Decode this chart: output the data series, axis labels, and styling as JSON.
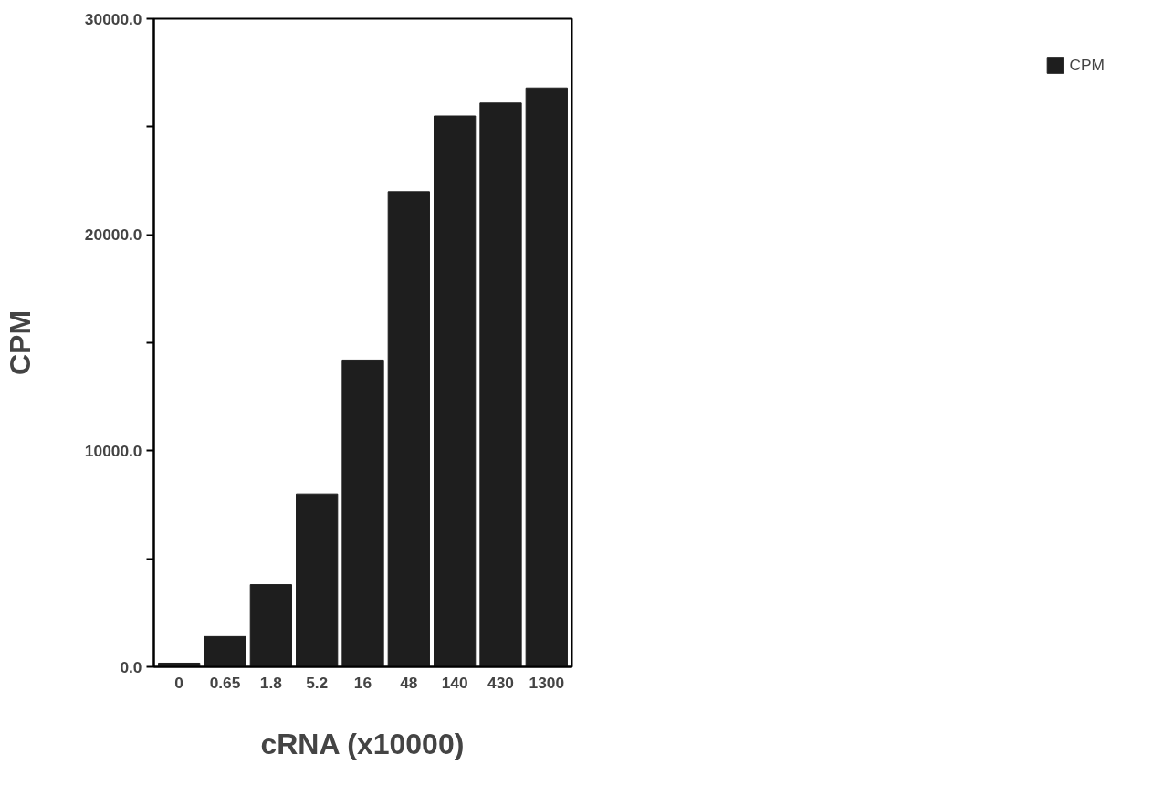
{
  "chart_data": {
    "type": "bar",
    "xlabel": "cRNA (x10000)",
    "ylabel": "CPM",
    "categories": [
      "0",
      "0.65",
      "1.8",
      "5.2",
      "16",
      "48",
      "140",
      "430",
      "1300"
    ],
    "series": [
      {
        "name": "CPM",
        "color": "#1e1e1e",
        "values": [
          170,
          1400,
          3800,
          8000,
          14200,
          22000,
          25500,
          26100,
          26800
        ]
      }
    ],
    "ylim": [
      0,
      30000
    ],
    "yticks": [
      {
        "value": 0,
        "label": "0.0"
      },
      {
        "value": 5000,
        "label": null
      },
      {
        "value": 10000,
        "label": "10000.0"
      },
      {
        "value": 15000,
        "label": null
      },
      {
        "value": 20000,
        "label": "20000.0"
      },
      {
        "value": 25000,
        "label": null
      },
      {
        "value": 30000,
        "label": "30000.0"
      }
    ],
    "grid": false,
    "legend": "right"
  }
}
